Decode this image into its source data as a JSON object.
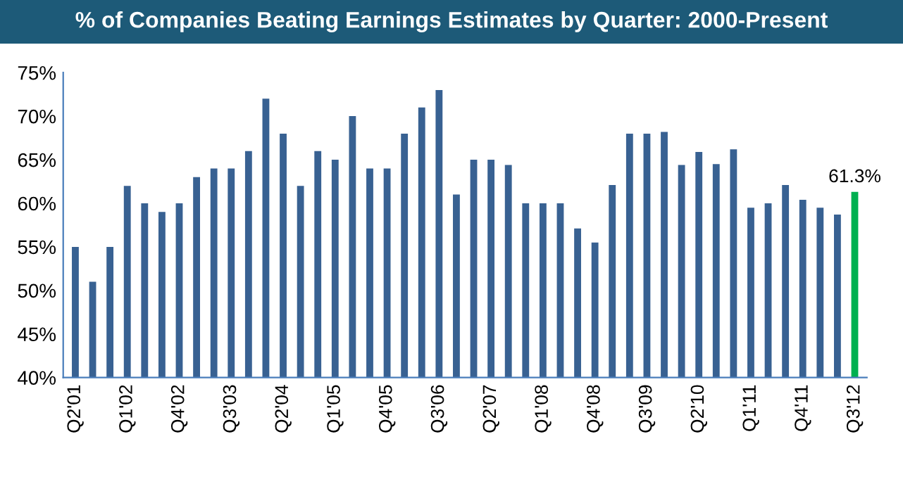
{
  "chart_data": {
    "type": "bar",
    "title": "% of Companies Beating Earnings Estimates by Quarter: 2000-Present",
    "categories": [
      "Q2'01",
      null,
      null,
      "Q1'02",
      null,
      null,
      "Q4'02",
      null,
      null,
      "Q3'03",
      null,
      null,
      "Q2'04",
      null,
      null,
      "Q1'05",
      null,
      null,
      "Q4'05",
      null,
      null,
      "Q3'06",
      null,
      null,
      "Q2'07",
      null,
      null,
      "Q1'08",
      null,
      null,
      "Q4'08",
      null,
      null,
      "Q3'09",
      null,
      null,
      "Q2'10",
      null,
      null,
      "Q1'11",
      null,
      null,
      "Q4'11",
      null,
      null,
      "Q3'12"
    ],
    "values": [
      55,
      51,
      55,
      62,
      60,
      59,
      60,
      63,
      64,
      64,
      66,
      72,
      68,
      62,
      66,
      65,
      70,
      64,
      64,
      68,
      71,
      73,
      61,
      65,
      65,
      64.4,
      60,
      60,
      60,
      57.1,
      55.5,
      62.1,
      68,
      68,
      68.2,
      64.4,
      65.9,
      64.5,
      66.2,
      59.5,
      60,
      62.1,
      60.4,
      59.5,
      58.7,
      61.3
    ],
    "colors": [
      "#386192",
      "#386192",
      "#386192",
      "#386192",
      "#386192",
      "#386192",
      "#386192",
      "#386192",
      "#386192",
      "#386192",
      "#386192",
      "#386192",
      "#386192",
      "#386192",
      "#386192",
      "#386192",
      "#386192",
      "#386192",
      "#386192",
      "#386192",
      "#386192",
      "#386192",
      "#386192",
      "#386192",
      "#386192",
      "#386192",
      "#386192",
      "#386192",
      "#386192",
      "#386192",
      "#386192",
      "#386192",
      "#386192",
      "#386192",
      "#386192",
      "#386192",
      "#386192",
      "#386192",
      "#386192",
      "#386192",
      "#386192",
      "#386192",
      "#386192",
      "#386192",
      "#386192",
      "#00b050"
    ],
    "value_labels": [
      null,
      null,
      null,
      null,
      null,
      null,
      null,
      null,
      null,
      null,
      null,
      null,
      null,
      null,
      null,
      null,
      null,
      null,
      null,
      null,
      null,
      null,
      null,
      null,
      null,
      null,
      null,
      null,
      null,
      null,
      null,
      null,
      null,
      null,
      null,
      null,
      null,
      null,
      null,
      null,
      null,
      null,
      null,
      null,
      null,
      "61.3%"
    ],
    "ylim": [
      40,
      75
    ],
    "yticks": [
      {
        "value": 40,
        "label": "40%"
      },
      {
        "value": 45,
        "label": "45%"
      },
      {
        "value": 50,
        "label": "50%"
      },
      {
        "value": 55,
        "label": "55%"
      },
      {
        "value": 60,
        "label": "60%"
      },
      {
        "value": 65,
        "label": "65%"
      },
      {
        "value": 70,
        "label": "70%"
      },
      {
        "value": 75,
        "label": "75%"
      }
    ],
    "grid": false,
    "legend": false
  }
}
